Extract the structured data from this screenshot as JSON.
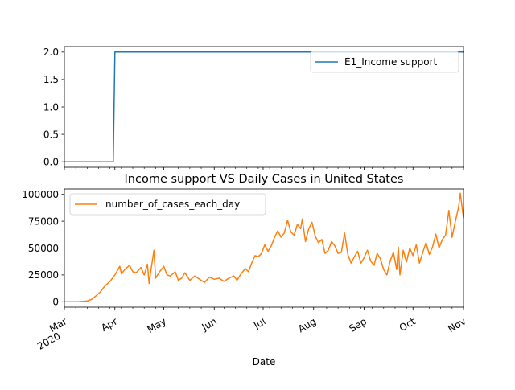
{
  "chart_data": [
    {
      "type": "line",
      "title": "",
      "xlabel": "",
      "ylabel": "",
      "x_range": [
        "2020-03-01",
        "2020-11-01"
      ],
      "ylim": [
        -0.1,
        2.1
      ],
      "yticks": [
        0.0,
        0.5,
        1.0,
        1.5,
        2.0
      ],
      "ytick_labels": [
        "0.0",
        "0.5",
        "1.0",
        "1.5",
        "2.0"
      ],
      "grid": false,
      "legend_position": "top-right",
      "series": [
        {
          "name": "E1_Income support",
          "color": "#1f77b4",
          "points": [
            [
              "2020-03-01",
              0
            ],
            [
              "2020-03-31",
              0
            ],
            [
              "2020-04-01",
              2
            ],
            [
              "2020-11-01",
              2
            ]
          ]
        }
      ]
    },
    {
      "type": "line",
      "title": "Income support VS Daily Cases in United States",
      "xlabel": "Date",
      "ylabel": "",
      "x_range": [
        "2020-03-01",
        "2020-11-01"
      ],
      "ylim": [
        -5000,
        105000
      ],
      "yticks": [
        0,
        25000,
        50000,
        75000,
        100000
      ],
      "ytick_labels": [
        "0",
        "25000",
        "50000",
        "75000",
        "100000"
      ],
      "grid": false,
      "legend_position": "top-left",
      "series": [
        {
          "name": "number_of_cases_each_day",
          "color": "#ff7f0e",
          "points": [
            [
              "2020-03-01",
              0
            ],
            [
              "2020-03-10",
              200
            ],
            [
              "2020-03-15",
              700
            ],
            [
              "2020-03-18",
              2500
            ],
            [
              "2020-03-20",
              5000
            ],
            [
              "2020-03-23",
              9000
            ],
            [
              "2020-03-26",
              15000
            ],
            [
              "2020-03-29",
              19000
            ],
            [
              "2020-04-01",
              25000
            ],
            [
              "2020-04-04",
              33000
            ],
            [
              "2020-04-05",
              26000
            ],
            [
              "2020-04-07",
              30000
            ],
            [
              "2020-04-10",
              34000
            ],
            [
              "2020-04-12",
              28000
            ],
            [
              "2020-04-14",
              27000
            ],
            [
              "2020-04-17",
              32000
            ],
            [
              "2020-04-19",
              25000
            ],
            [
              "2020-04-21",
              35000
            ],
            [
              "2020-04-22",
              17000
            ],
            [
              "2020-04-23",
              28000
            ],
            [
              "2020-04-25",
              48000
            ],
            [
              "2020-04-26",
              22000
            ],
            [
              "2020-04-28",
              27000
            ],
            [
              "2020-05-01",
              33000
            ],
            [
              "2020-05-03",
              25000
            ],
            [
              "2020-05-05",
              24000
            ],
            [
              "2020-05-08",
              28000
            ],
            [
              "2020-05-10",
              20000
            ],
            [
              "2020-05-12",
              22000
            ],
            [
              "2020-05-14",
              27000
            ],
            [
              "2020-05-17",
              20000
            ],
            [
              "2020-05-20",
              24000
            ],
            [
              "2020-05-23",
              21000
            ],
            [
              "2020-05-26",
              18000
            ],
            [
              "2020-05-29",
              23000
            ],
            [
              "2020-06-01",
              21000
            ],
            [
              "2020-06-04",
              22000
            ],
            [
              "2020-06-07",
              19000
            ],
            [
              "2020-06-10",
              22000
            ],
            [
              "2020-06-13",
              24000
            ],
            [
              "2020-06-15",
              20000
            ],
            [
              "2020-06-17",
              25000
            ],
            [
              "2020-06-20",
              31000
            ],
            [
              "2020-06-22",
              28000
            ],
            [
              "2020-06-24",
              36000
            ],
            [
              "2020-06-26",
              43000
            ],
            [
              "2020-06-28",
              42000
            ],
            [
              "2020-06-30",
              45000
            ],
            [
              "2020-07-02",
              53000
            ],
            [
              "2020-07-04",
              47000
            ],
            [
              "2020-07-06",
              52000
            ],
            [
              "2020-07-08",
              60000
            ],
            [
              "2020-07-10",
              66000
            ],
            [
              "2020-07-12",
              60000
            ],
            [
              "2020-07-14",
              64000
            ],
            [
              "2020-07-16",
              76000
            ],
            [
              "2020-07-18",
              65000
            ],
            [
              "2020-07-20",
              62000
            ],
            [
              "2020-07-22",
              72000
            ],
            [
              "2020-07-24",
              68000
            ],
            [
              "2020-07-25",
              77000
            ],
            [
              "2020-07-27",
              56000
            ],
            [
              "2020-07-29",
              68000
            ],
            [
              "2020-07-31",
              74000
            ],
            [
              "2020-08-02",
              61000
            ],
            [
              "2020-08-04",
              55000
            ],
            [
              "2020-08-06",
              58000
            ],
            [
              "2020-08-08",
              45000
            ],
            [
              "2020-08-10",
              48000
            ],
            [
              "2020-08-12",
              56000
            ],
            [
              "2020-08-14",
              52000
            ],
            [
              "2020-08-16",
              45000
            ],
            [
              "2020-08-18",
              46000
            ],
            [
              "2020-08-20",
              64000
            ],
            [
              "2020-08-22",
              44000
            ],
            [
              "2020-08-24",
              36000
            ],
            [
              "2020-08-26",
              42000
            ],
            [
              "2020-08-28",
              47000
            ],
            [
              "2020-08-30",
              36000
            ],
            [
              "2020-09-01",
              41000
            ],
            [
              "2020-09-03",
              48000
            ],
            [
              "2020-09-05",
              38000
            ],
            [
              "2020-09-07",
              34000
            ],
            [
              "2020-09-09",
              45000
            ],
            [
              "2020-09-11",
              40000
            ],
            [
              "2020-09-13",
              30000
            ],
            [
              "2020-09-15",
              25000
            ],
            [
              "2020-09-17",
              38000
            ],
            [
              "2020-09-19",
              46000
            ],
            [
              "2020-09-21",
              30000
            ],
            [
              "2020-09-22",
              51000
            ],
            [
              "2020-09-23",
              25000
            ],
            [
              "2020-09-25",
              48000
            ],
            [
              "2020-09-27",
              37000
            ],
            [
              "2020-09-29",
              50000
            ],
            [
              "2020-10-01",
              43000
            ],
            [
              "2020-10-03",
              53000
            ],
            [
              "2020-10-05",
              36000
            ],
            [
              "2020-10-07",
              46000
            ],
            [
              "2020-10-09",
              55000
            ],
            [
              "2020-10-11",
              44000
            ],
            [
              "2020-10-13",
              51000
            ],
            [
              "2020-10-15",
              63000
            ],
            [
              "2020-10-17",
              50000
            ],
            [
              "2020-10-19",
              58000
            ],
            [
              "2020-10-21",
              62000
            ],
            [
              "2020-10-23",
              85000
            ],
            [
              "2020-10-25",
              60000
            ],
            [
              "2020-10-27",
              75000
            ],
            [
              "2020-10-29",
              88000
            ],
            [
              "2020-10-30",
              101000
            ],
            [
              "2020-11-01",
              78000
            ]
          ]
        }
      ],
      "xticks": [
        {
          "date": "2020-03-01",
          "label": "Mar",
          "sublabel": "2020"
        },
        {
          "date": "2020-04-01",
          "label": "Apr"
        },
        {
          "date": "2020-05-01",
          "label": "May"
        },
        {
          "date": "2020-06-01",
          "label": "Jun"
        },
        {
          "date": "2020-07-01",
          "label": "Jul"
        },
        {
          "date": "2020-08-01",
          "label": "Aug"
        },
        {
          "date": "2020-09-01",
          "label": "Sep"
        },
        {
          "date": "2020-10-01",
          "label": "Oct"
        },
        {
          "date": "2020-11-01",
          "label": "Nov"
        }
      ]
    }
  ]
}
